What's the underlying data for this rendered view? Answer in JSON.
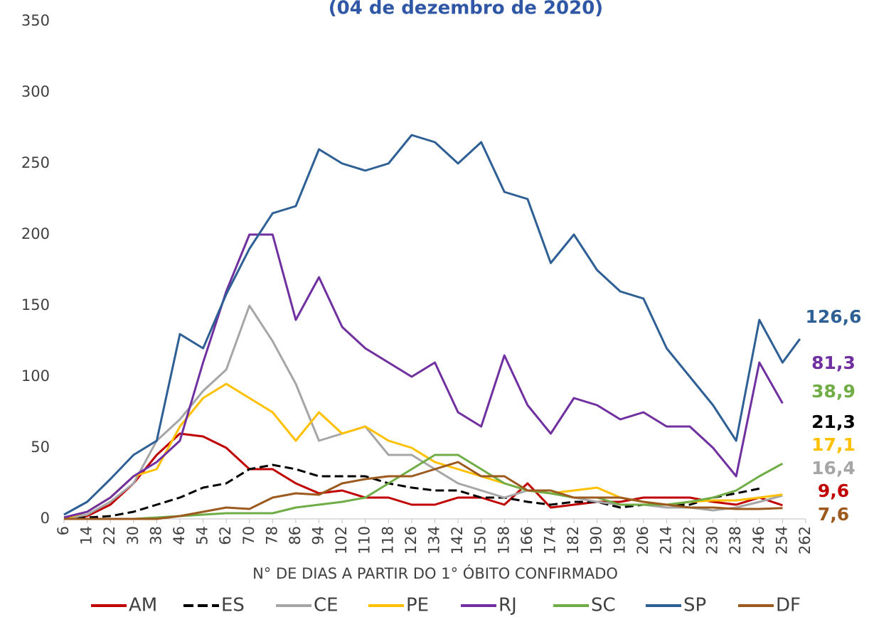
{
  "chart_data": {
    "type": "line",
    "title": "(04 de dezembro de 2020)",
    "x_label": "N° DE DIAS A PARTIR DO 1° ÓBITO CONFIRMADO",
    "x": [
      6,
      14,
      22,
      30,
      38,
      46,
      54,
      62,
      70,
      78,
      86,
      94,
      102,
      110,
      118,
      126,
      134,
      142,
      150,
      158,
      166,
      174,
      182,
      190,
      198,
      206,
      214,
      222,
      230,
      238,
      246,
      254,
      260
    ],
    "xlim": [
      6,
      262
    ],
    "xticks": [
      6,
      14,
      22,
      30,
      38,
      46,
      54,
      62,
      70,
      78,
      86,
      94,
      102,
      110,
      118,
      126,
      134,
      142,
      150,
      158,
      166,
      174,
      182,
      190,
      198,
      206,
      214,
      222,
      230,
      238,
      246,
      254,
      262
    ],
    "ylim": [
      0,
      350
    ],
    "yticks": [
      0,
      50,
      100,
      150,
      200,
      250,
      300,
      350
    ],
    "legend": "bottom",
    "series": [
      {
        "name": "AM",
        "color": "#c00000",
        "values": [
          0,
          2,
          10,
          25,
          45,
          60,
          58,
          50,
          35,
          35,
          25,
          18,
          20,
          15,
          15,
          10,
          10,
          15,
          15,
          10,
          25,
          8,
          10,
          12,
          12,
          15,
          15,
          15,
          12,
          10,
          15,
          9.6,
          null
        ],
        "value_labels": [
          null,
          null,
          null,
          null,
          null,
          null,
          null,
          null,
          null,
          null,
          null,
          null,
          null,
          null,
          null,
          null,
          null,
          null,
          null,
          null,
          null,
          null,
          null,
          null,
          null,
          null,
          null,
          null,
          null,
          null,
          null,
          "9,6",
          null
        ]
      },
      {
        "name": "ES",
        "color": "#000000",
        "dashed": true,
        "values": [
          0,
          1,
          2,
          5,
          10,
          15,
          22,
          25,
          35,
          38,
          35,
          30,
          30,
          30,
          25,
          22,
          20,
          20,
          15,
          15,
          12,
          10,
          12,
          12,
          8,
          10,
          10,
          10,
          15,
          18,
          21.3,
          null,
          null
        ],
        "value_labels": [
          null,
          null,
          null,
          null,
          null,
          null,
          null,
          null,
          null,
          null,
          null,
          null,
          null,
          null,
          null,
          null,
          null,
          null,
          null,
          null,
          null,
          null,
          null,
          null,
          null,
          null,
          null,
          null,
          null,
          null,
          "21,3",
          null,
          null
        ]
      },
      {
        "name": "CE",
        "color": "#a6a6a6",
        "values": [
          0,
          3,
          12,
          25,
          55,
          70,
          90,
          105,
          150,
          125,
          95,
          55,
          60,
          65,
          45,
          45,
          35,
          25,
          20,
          15,
          20,
          18,
          15,
          12,
          10,
          10,
          8,
          8,
          6,
          8,
          12,
          16.4,
          null
        ],
        "value_labels": [
          null,
          null,
          null,
          null,
          null,
          null,
          null,
          null,
          null,
          null,
          null,
          null,
          null,
          null,
          null,
          null,
          null,
          null,
          null,
          null,
          null,
          null,
          null,
          null,
          null,
          null,
          null,
          null,
          null,
          null,
          null,
          "16,4",
          null
        ]
      },
      {
        "name": "PE",
        "color": "#ffc000",
        "values": [
          0,
          5,
          15,
          30,
          35,
          65,
          85,
          95,
          85,
          75,
          55,
          75,
          60,
          65,
          55,
          50,
          40,
          35,
          30,
          25,
          20,
          18,
          20,
          22,
          15,
          12,
          10,
          12,
          13,
          13,
          15,
          17.1,
          null
        ],
        "value_labels": [
          null,
          null,
          null,
          null,
          null,
          null,
          null,
          null,
          null,
          null,
          null,
          null,
          null,
          null,
          null,
          null,
          null,
          null,
          null,
          null,
          null,
          null,
          null,
          null,
          null,
          null,
          null,
          null,
          null,
          null,
          null,
          "17,1",
          null
        ]
      },
      {
        "name": "RJ",
        "color": "#7030a0",
        "values": [
          1,
          5,
          15,
          30,
          40,
          55,
          110,
          160,
          200,
          200,
          140,
          170,
          135,
          120,
          110,
          100,
          110,
          75,
          65,
          115,
          80,
          60,
          85,
          80,
          70,
          75,
          65,
          65,
          50,
          30,
          110,
          81.3,
          null
        ],
        "value_labels": [
          null,
          null,
          null,
          null,
          null,
          null,
          null,
          null,
          null,
          null,
          null,
          null,
          null,
          null,
          null,
          null,
          null,
          null,
          null,
          null,
          null,
          null,
          null,
          null,
          null,
          null,
          null,
          null,
          null,
          null,
          null,
          "81,3",
          null
        ]
      },
      {
        "name": "SC",
        "color": "#70ad47",
        "values": [
          0,
          0,
          0,
          0,
          1,
          2,
          3,
          4,
          4,
          4,
          8,
          10,
          12,
          15,
          25,
          35,
          45,
          45,
          35,
          25,
          20,
          18,
          15,
          15,
          10,
          10,
          10,
          12,
          15,
          20,
          30,
          38.9,
          null
        ],
        "value_labels": [
          null,
          null,
          null,
          null,
          null,
          null,
          null,
          null,
          null,
          null,
          null,
          null,
          null,
          null,
          null,
          null,
          null,
          null,
          null,
          null,
          null,
          null,
          null,
          null,
          null,
          null,
          null,
          null,
          null,
          null,
          null,
          "38,9",
          null
        ]
      },
      {
        "name": "SP",
        "color": "#2e5f95",
        "values": [
          3,
          12,
          28,
          45,
          55,
          130,
          120,
          158,
          190,
          215,
          220,
          260,
          250,
          245,
          250,
          270,
          265,
          250,
          265,
          230,
          225,
          180,
          200,
          175,
          160,
          155,
          120,
          100,
          80,
          55,
          140,
          110,
          126.6
        ],
        "value_labels": [
          null,
          null,
          null,
          null,
          null,
          null,
          null,
          null,
          null,
          null,
          null,
          null,
          null,
          null,
          null,
          null,
          null,
          null,
          null,
          null,
          null,
          null,
          null,
          null,
          null,
          null,
          null,
          null,
          null,
          null,
          null,
          null,
          "126,6"
        ]
      },
      {
        "name": "DF",
        "color": "#9c5a1e",
        "values": [
          0,
          0,
          0,
          0,
          0,
          2,
          5,
          8,
          7,
          15,
          18,
          17,
          25,
          28,
          30,
          30,
          35,
          40,
          30,
          30,
          20,
          20,
          15,
          15,
          15,
          12,
          10,
          8,
          8,
          7,
          7,
          7.6,
          null
        ],
        "value_labels": [
          null,
          null,
          null,
          null,
          null,
          null,
          null,
          null,
          null,
          null,
          null,
          null,
          null,
          null,
          null,
          null,
          null,
          null,
          null,
          null,
          null,
          null,
          null,
          null,
          null,
          null,
          null,
          null,
          null,
          null,
          null,
          "7,6",
          null
        ]
      }
    ]
  }
}
